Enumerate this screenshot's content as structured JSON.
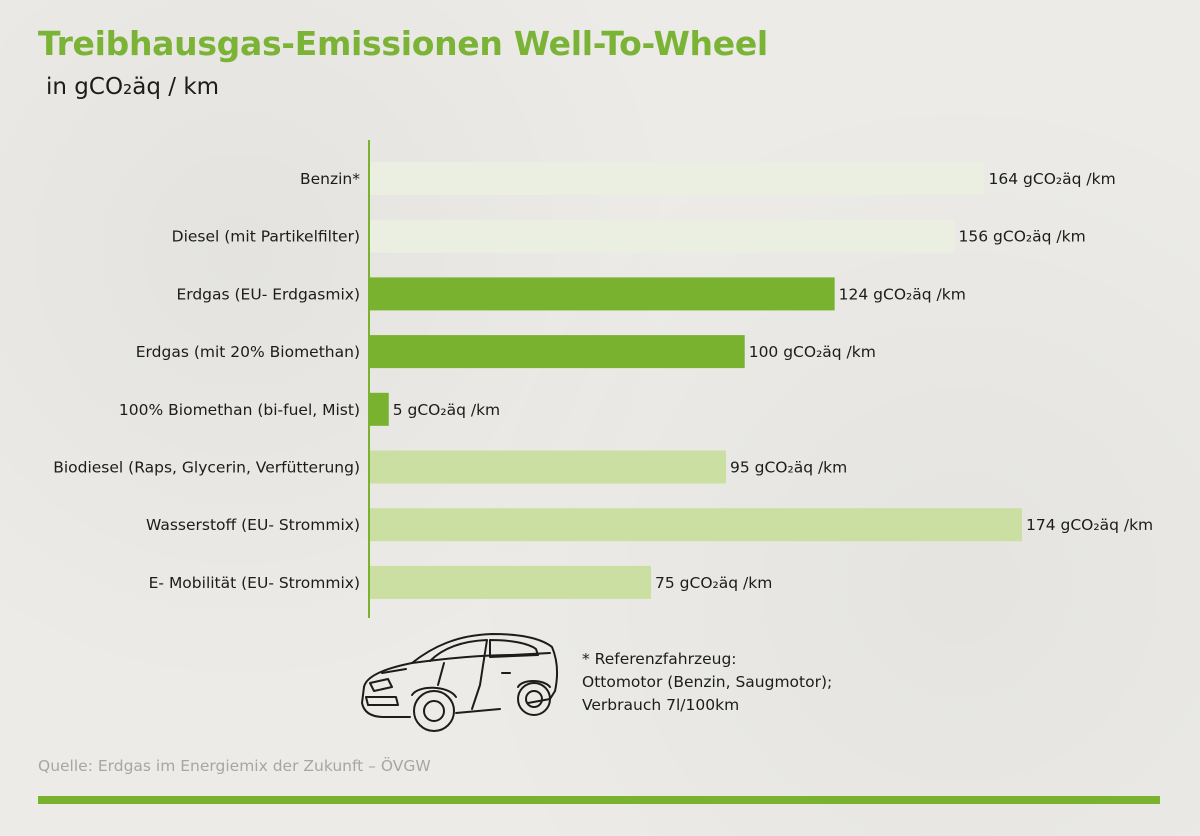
{
  "header": {
    "title": "Treibhausgas-Emissionen Well-To-Wheel",
    "subtitle": "in gCO₂äq / km"
  },
  "chart_data": {
    "type": "bar",
    "orientation": "horizontal",
    "title": "Treibhausgas-Emissionen Well-To-Wheel",
    "subtitle": "in gCO₂äq / km",
    "xlim": [
      0,
      174
    ],
    "grid": false,
    "legend": "none",
    "unit_suffix": " gCO₂äq /km",
    "categories": [
      "Benzin*",
      "Diesel (mit Partikelfilter)",
      "Erdgas (EU- Erdgasmix)",
      "Erdgas (mit 20% Biomethan)",
      "100% Biomethan (bi-fuel, Mist)",
      "Biodiesel (Raps, Glycerin, Verfütterung)",
      "Wasserstoff (EU- Strommix)",
      "E- Mobilität (EU- Strommix)"
    ],
    "values": [
      164,
      156,
      124,
      100,
      5,
      95,
      174,
      75
    ],
    "colors": [
      "#eaefe2",
      "#eaefe2",
      "#79b22e",
      "#79b22e",
      "#79b22e",
      "#cbdfa2",
      "#cbdfa2",
      "#cbdfa2"
    ],
    "axis_color": "#79b22e"
  },
  "footnote": {
    "lines": [
      "* Referenzfahrzeug:",
      "Ottomotor (Benzin, Saugmotor);",
      "Verbrauch 7l/100km"
    ]
  },
  "source": "Quelle: Erdgas im Energiemix der Zukunft – ÖVGW",
  "icons": {
    "car": "car-sketch-icon"
  },
  "colors": {
    "accent": "#78b22f",
    "source_text": "#a6a6a6"
  }
}
